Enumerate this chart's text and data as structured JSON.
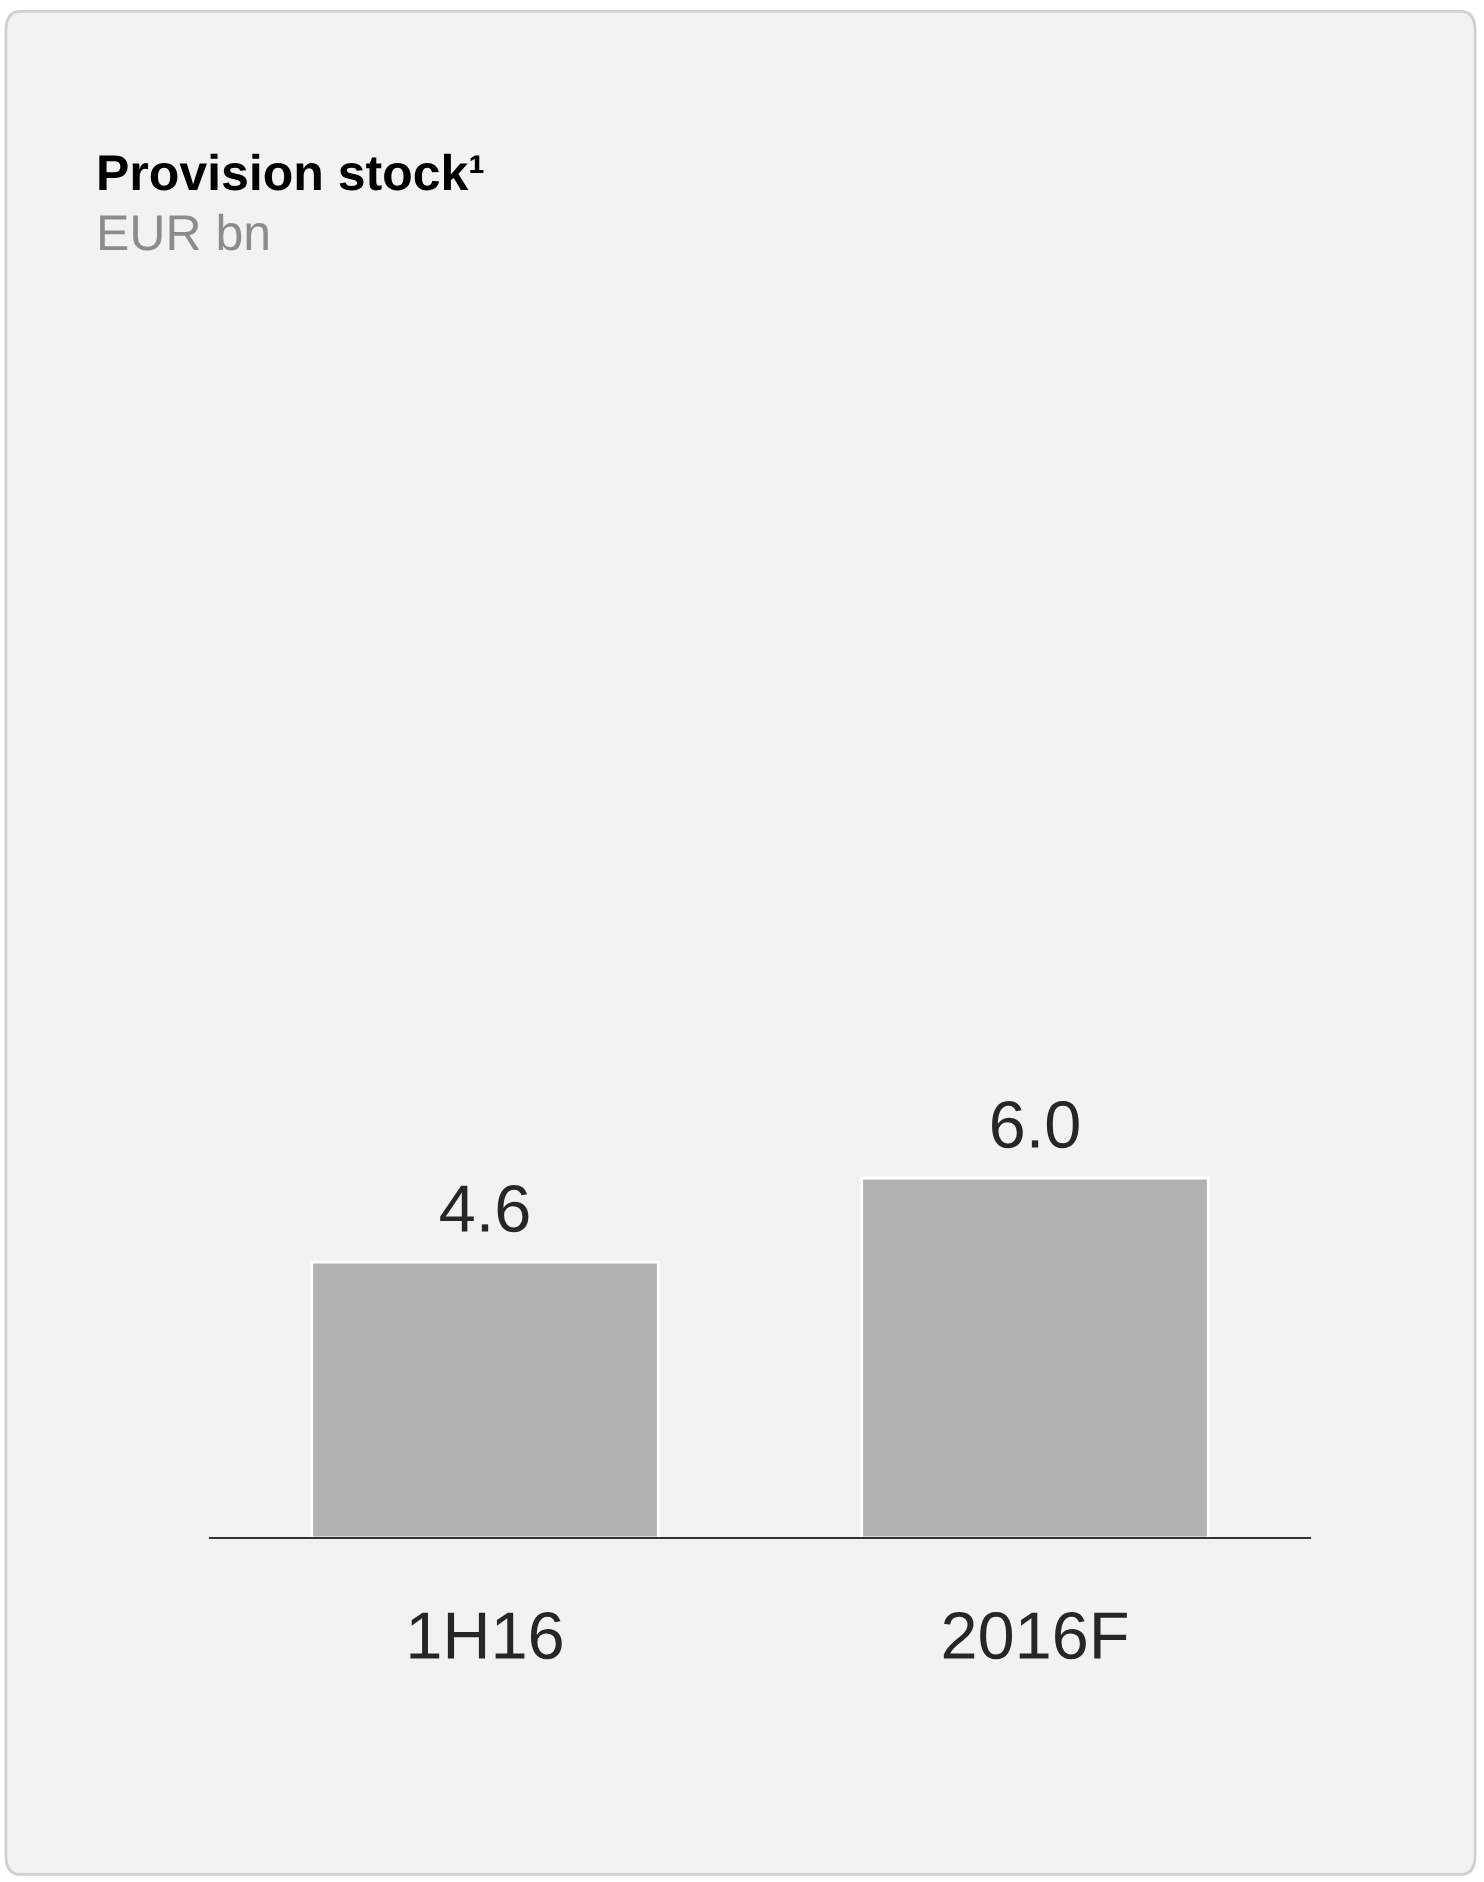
{
  "chart_data": {
    "type": "bar",
    "title": "Provision stock¹",
    "subtitle": "EUR bn",
    "categories": [
      "1H16",
      "2016F"
    ],
    "values": [
      4.6,
      6.0
    ],
    "color": "#b2b2b2",
    "value_labels": [
      "4.6",
      "6.0"
    ]
  }
}
